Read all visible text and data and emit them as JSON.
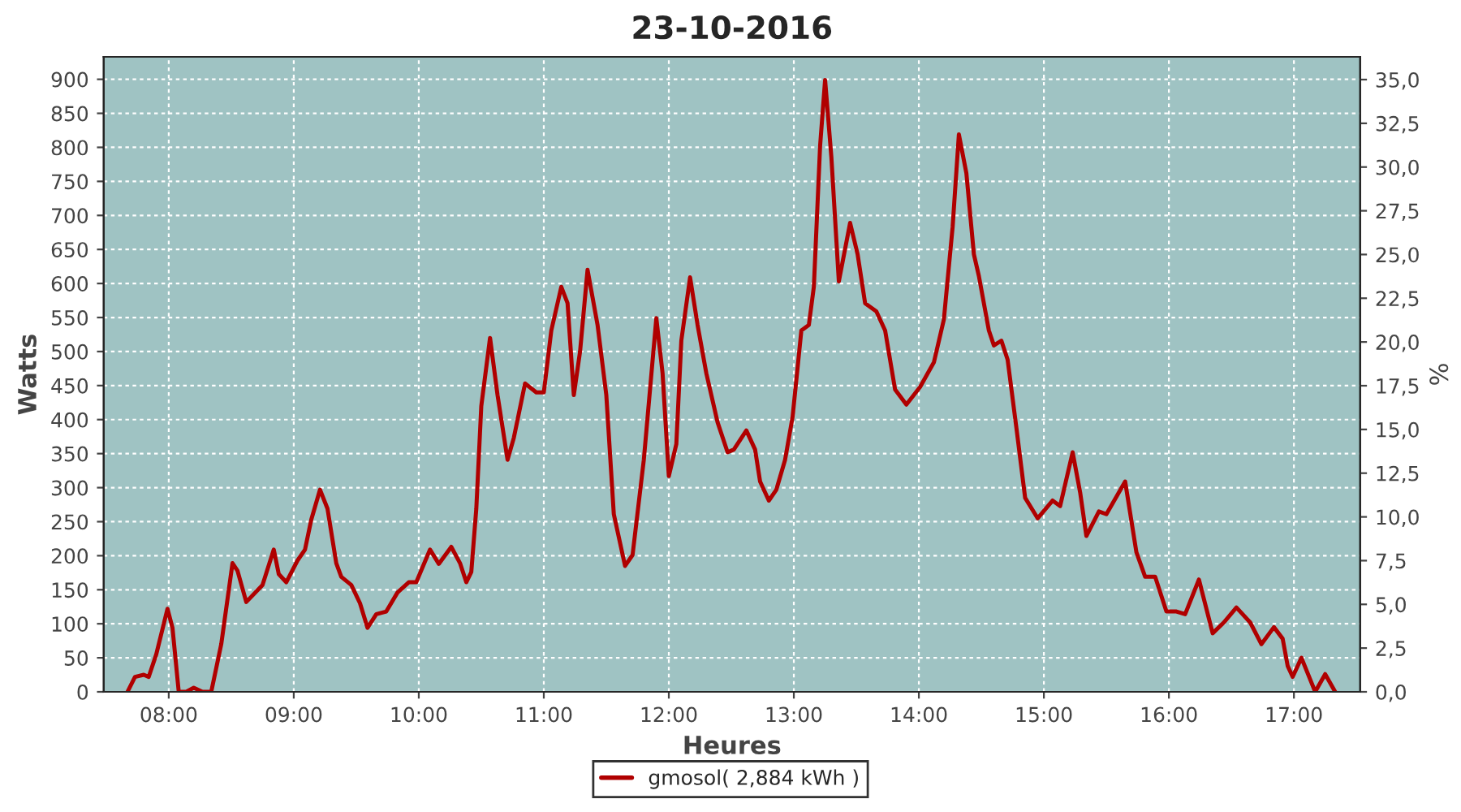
{
  "chart_data": {
    "type": "line",
    "title": "23-10-2016",
    "xlabel": "Heures",
    "ylabel": "Watts",
    "y2label": "%",
    "xlim": [
      7.48,
      17.53
    ],
    "xticks": [
      {
        "value": 8,
        "label": "08:00"
      },
      {
        "value": 9,
        "label": "09:00"
      },
      {
        "value": 10,
        "label": "10:00"
      },
      {
        "value": 11,
        "label": "11:00"
      },
      {
        "value": 12,
        "label": "12:00"
      },
      {
        "value": 13,
        "label": "13:00"
      },
      {
        "value": 14,
        "label": "14:00"
      },
      {
        "value": 15,
        "label": "15:00"
      },
      {
        "value": 16,
        "label": "16:00"
      },
      {
        "value": 17,
        "label": "17:00"
      }
    ],
    "ylim": [
      0,
      933
    ],
    "yticks": [
      0,
      50,
      100,
      150,
      200,
      250,
      300,
      350,
      400,
      450,
      500,
      550,
      600,
      650,
      700,
      750,
      800,
      850,
      900
    ],
    "y2lim": [
      0,
      36.3
    ],
    "y2ticks": [
      {
        "value": 0,
        "label": "0,0"
      },
      {
        "value": 2.5,
        "label": "2,5"
      },
      {
        "value": 5,
        "label": "5,0"
      },
      {
        "value": 7.5,
        "label": "7,5"
      },
      {
        "value": 10,
        "label": "10,0"
      },
      {
        "value": 12.5,
        "label": "12,5"
      },
      {
        "value": 15,
        "label": "15,0"
      },
      {
        "value": 17.5,
        "label": "17,5"
      },
      {
        "value": 20,
        "label": "20,0"
      },
      {
        "value": 22.5,
        "label": "22,5"
      },
      {
        "value": 25,
        "label": "25,0"
      },
      {
        "value": 27.5,
        "label": "27,5"
      },
      {
        "value": 30,
        "label": "30,0"
      },
      {
        "value": 32.5,
        "label": "32,5"
      },
      {
        "value": 35,
        "label": "35,0"
      }
    ],
    "grid": true,
    "legend": "bottom",
    "line_style": "solid",
    "marker": "none",
    "series": [
      {
        "name": "gmosol( 2,884 kWh )",
        "color": "#b00000",
        "x": [
          7.67,
          7.73,
          7.8,
          7.84,
          7.9,
          7.99,
          8.03,
          8.08,
          8.14,
          8.2,
          8.27,
          8.34,
          8.42,
          8.51,
          8.55,
          8.62,
          8.75,
          8.84,
          8.88,
          8.94,
          9.03,
          9.09,
          9.14,
          9.21,
          9.27,
          9.34,
          9.38,
          9.46,
          9.53,
          9.59,
          9.66,
          9.74,
          9.83,
          9.92,
          9.98,
          10.09,
          10.16,
          10.26,
          10.33,
          10.38,
          10.42,
          10.46,
          10.5,
          10.57,
          10.63,
          10.71,
          10.76,
          10.85,
          10.94,
          11.0,
          11.06,
          11.14,
          11.19,
          11.24,
          11.29,
          11.35,
          11.43,
          11.5,
          11.56,
          11.65,
          11.71,
          11.8,
          11.9,
          11.95,
          12.0,
          12.06,
          12.1,
          12.17,
          12.23,
          12.3,
          12.39,
          12.47,
          12.52,
          12.62,
          12.69,
          12.73,
          12.8,
          12.86,
          12.93,
          12.99,
          13.06,
          13.12,
          13.16,
          13.21,
          13.25,
          13.3,
          13.36,
          13.45,
          13.51,
          13.57,
          13.66,
          13.73,
          13.81,
          13.9,
          14.01,
          14.12,
          14.2,
          14.27,
          14.32,
          14.38,
          14.44,
          14.48,
          14.56,
          14.6,
          14.66,
          14.71,
          14.78,
          14.85,
          14.95,
          15.07,
          15.13,
          15.23,
          15.29,
          15.34,
          15.44,
          15.5,
          15.65,
          15.74,
          15.81,
          15.89,
          15.98,
          16.06,
          16.13,
          16.24,
          16.35,
          16.44,
          16.54,
          16.65,
          16.74,
          16.84,
          16.91,
          16.95,
          16.99,
          17.06,
          17.17,
          17.25,
          17.33
        ],
        "values": [
          0,
          22,
          25,
          22,
          55,
          122,
          94,
          0,
          0,
          6,
          0,
          0,
          70,
          189,
          178,
          132,
          157,
          209,
          173,
          161,
          193,
          209,
          253,
          297,
          269,
          189,
          169,
          157,
          130,
          94,
          114,
          118,
          146,
          161,
          161,
          209,
          188,
          213,
          189,
          161,
          176,
          269,
          420,
          520,
          436,
          341,
          373,
          453,
          440,
          440,
          531,
          595,
          571,
          436,
          500,
          620,
          539,
          436,
          261,
          185,
          201,
          341,
          549,
          468,
          317,
          364,
          516,
          609,
          539,
          468,
          396,
          352,
          356,
          384,
          356,
          309,
          281,
          297,
          341,
          404,
          531,
          539,
          595,
          802,
          899,
          786,
          603,
          689,
          643,
          571,
          559,
          531,
          444,
          422,
          448,
          484,
          547,
          683,
          819,
          762,
          643,
          611,
          531,
          509,
          516,
          488,
          388,
          285,
          255,
          281,
          273,
          352,
          293,
          229,
          265,
          261,
          309,
          205,
          169,
          169,
          118,
          118,
          114,
          165,
          86,
          102,
          124,
          102,
          70,
          95,
          78,
          38,
          22,
          50,
          0,
          26,
          0
        ]
      }
    ]
  }
}
